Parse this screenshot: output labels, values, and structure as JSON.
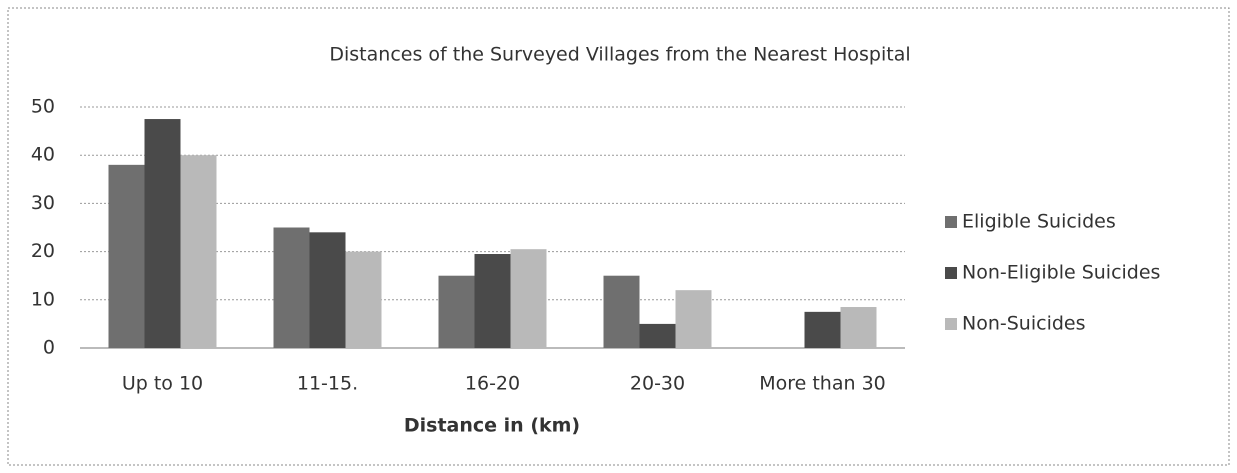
{
  "chart_data": {
    "type": "bar",
    "title": "Distances of the Surveyed Villages from the Nearest Hospital",
    "x_label": "Distance in (km)",
    "categories": [
      "Up to 10",
      "11-15.",
      "16-20",
      "20-30",
      "More than 30"
    ],
    "series": [
      {
        "name": "Eligible Suicides",
        "color": "#6f6f6f",
        "values": [
          38,
          25,
          15,
          15,
          0
        ]
      },
      {
        "name": "Non-Eligible Suicides",
        "color": "#4a4a4a",
        "values": [
          47.5,
          24,
          19.5,
          5,
          7.5
        ]
      },
      {
        "name": "Non-Suicides",
        "color": "#b9b9b9",
        "values": [
          40,
          20,
          20.5,
          12,
          8.5
        ]
      }
    ],
    "ylim": [
      0,
      50
    ],
    "yticks": [
      0,
      10,
      20,
      30,
      40,
      50
    ],
    "grid": true,
    "legend": "right"
  }
}
